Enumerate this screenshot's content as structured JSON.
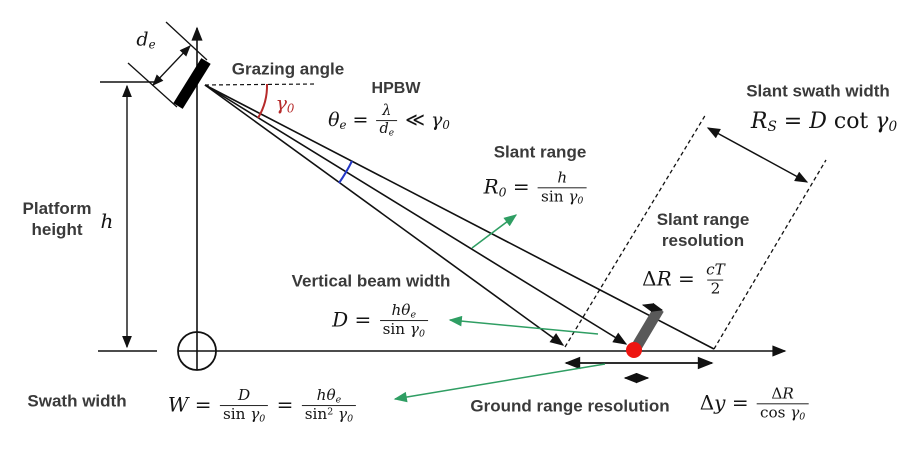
{
  "title": "Radar imaging geometry diagram",
  "colors": {
    "text": "#3a3a3a",
    "math": "#141414",
    "line": "#111111",
    "grazing_arc_red": "#b62a2a",
    "hpbw_arc_blue": "#2438c8",
    "leader_green": "#2f9e63",
    "resolution_cell_gray": "#595959",
    "ground_point_red": "#ee1511",
    "background": "#ffffff"
  },
  "labels": {
    "grazing_angle": "Grazing angle",
    "hpbw": "HPBW",
    "platform_height_line1": "Platform",
    "platform_height_line2": "height",
    "slant_range": "Slant range",
    "slant_swath_width": "Slant swath width",
    "slant_range_resolution_line1": "Slant range",
    "slant_range_resolution_line2": "resolution",
    "vertical_beam_width": "Vertical beam width",
    "swath_width": "Swath width",
    "ground_range_resolution": "Ground range resolution"
  },
  "formulas": {
    "antenna_aperture": {
      "plain": "d_e",
      "tokens": [
        {
          "k": "t",
          "v": "d"
        },
        {
          "k": "sub",
          "v": "e"
        }
      ]
    },
    "grazing_gamma": {
      "plain": "gamma_0",
      "tokens": [
        {
          "k": "t",
          "v": "γ"
        },
        {
          "k": "sub",
          "v": "0"
        }
      ]
    },
    "height": {
      "plain": "h",
      "tokens": [
        {
          "k": "t",
          "v": "h"
        }
      ]
    },
    "hpbw": {
      "plain": "theta_e = lambda / d_e << gamma_0",
      "tokens": [
        {
          "k": "t",
          "v": "θ"
        },
        {
          "k": "sub",
          "v": "e"
        },
        {
          "k": "rm",
          "v": " = "
        },
        {
          "k": "frac",
          "n": [
            {
              "k": "t",
              "v": "λ"
            }
          ],
          "d": [
            {
              "k": "t",
              "v": "d"
            },
            {
              "k": "sub",
              "v": "e"
            }
          ]
        },
        {
          "k": "rm",
          "v": " ≪ "
        },
        {
          "k": "t",
          "v": "γ"
        },
        {
          "k": "sub",
          "v": "0"
        }
      ]
    },
    "slant_range": {
      "plain": "R_0 = h / sin gamma_0",
      "tokens": [
        {
          "k": "t",
          "v": "R"
        },
        {
          "k": "sub",
          "v": "0"
        },
        {
          "k": "rm",
          "v": " = "
        },
        {
          "k": "frac",
          "n": [
            {
              "k": "t",
              "v": "h"
            }
          ],
          "d": [
            {
              "k": "rm",
              "v": "sin "
            },
            {
              "k": "t",
              "v": "γ"
            },
            {
              "k": "sub",
              "v": "0"
            }
          ]
        }
      ]
    },
    "slant_swath": {
      "plain": "R_S = D cot gamma_0",
      "tokens": [
        {
          "k": "t",
          "v": "R"
        },
        {
          "k": "sub",
          "v": "S"
        },
        {
          "k": "rm",
          "v": " = "
        },
        {
          "k": "t",
          "v": "D"
        },
        {
          "k": "rm",
          "v": " cot "
        },
        {
          "k": "t",
          "v": "γ"
        },
        {
          "k": "sub",
          "v": "0"
        }
      ]
    },
    "slant_res": {
      "plain": "Delta R = cT / 2",
      "tokens": [
        {
          "k": "rm",
          "v": "Δ"
        },
        {
          "k": "t",
          "v": "R"
        },
        {
          "k": "rm",
          "v": " = "
        },
        {
          "k": "frac",
          "n": [
            {
              "k": "t",
              "v": "cT"
            }
          ],
          "d": [
            {
              "k": "rm",
              "v": "2"
            }
          ]
        }
      ]
    },
    "vertical_beam": {
      "plain": "D = h theta_e / sin gamma_0",
      "tokens": [
        {
          "k": "t",
          "v": "D"
        },
        {
          "k": "rm",
          "v": " = "
        },
        {
          "k": "frac",
          "n": [
            {
              "k": "t",
              "v": "hθ"
            },
            {
              "k": "sub",
              "v": "e"
            }
          ],
          "d": [
            {
              "k": "rm",
              "v": "sin "
            },
            {
              "k": "t",
              "v": "γ"
            },
            {
              "k": "sub",
              "v": "0"
            }
          ]
        }
      ]
    },
    "swath": {
      "plain": "W = D / sin gamma_0 = h theta_e / sin^2 gamma_0",
      "tokens": [
        {
          "k": "t",
          "v": "W"
        },
        {
          "k": "rm",
          "v": " = "
        },
        {
          "k": "frac",
          "n": [
            {
              "k": "t",
              "v": "D"
            }
          ],
          "d": [
            {
              "k": "rm",
              "v": "sin "
            },
            {
              "k": "t",
              "v": "γ"
            },
            {
              "k": "sub",
              "v": "0"
            }
          ]
        },
        {
          "k": "rm",
          "v": " = "
        },
        {
          "k": "frac",
          "n": [
            {
              "k": "t",
              "v": "hθ"
            },
            {
              "k": "sub",
              "v": "e"
            }
          ],
          "d": [
            {
              "k": "rm",
              "v": "sin"
            },
            {
              "k": "sup",
              "v": "2"
            },
            {
              "k": "rm",
              "v": " "
            },
            {
              "k": "t",
              "v": "γ"
            },
            {
              "k": "sub",
              "v": "0"
            }
          ]
        }
      ]
    },
    "ground_res": {
      "plain": "Delta y = Delta R / cos gamma_0",
      "tokens": [
        {
          "k": "rm",
          "v": "Δ"
        },
        {
          "k": "t",
          "v": "y"
        },
        {
          "k": "rm",
          "v": " = "
        },
        {
          "k": "frac",
          "n": [
            {
              "k": "rm",
              "v": "Δ"
            },
            {
              "k": "t",
              "v": "R"
            }
          ],
          "d": [
            {
              "k": "rm",
              "v": "cos "
            },
            {
              "k": "t",
              "v": "γ"
            },
            {
              "k": "sub",
              "v": "0"
            }
          ]
        }
      ]
    }
  }
}
